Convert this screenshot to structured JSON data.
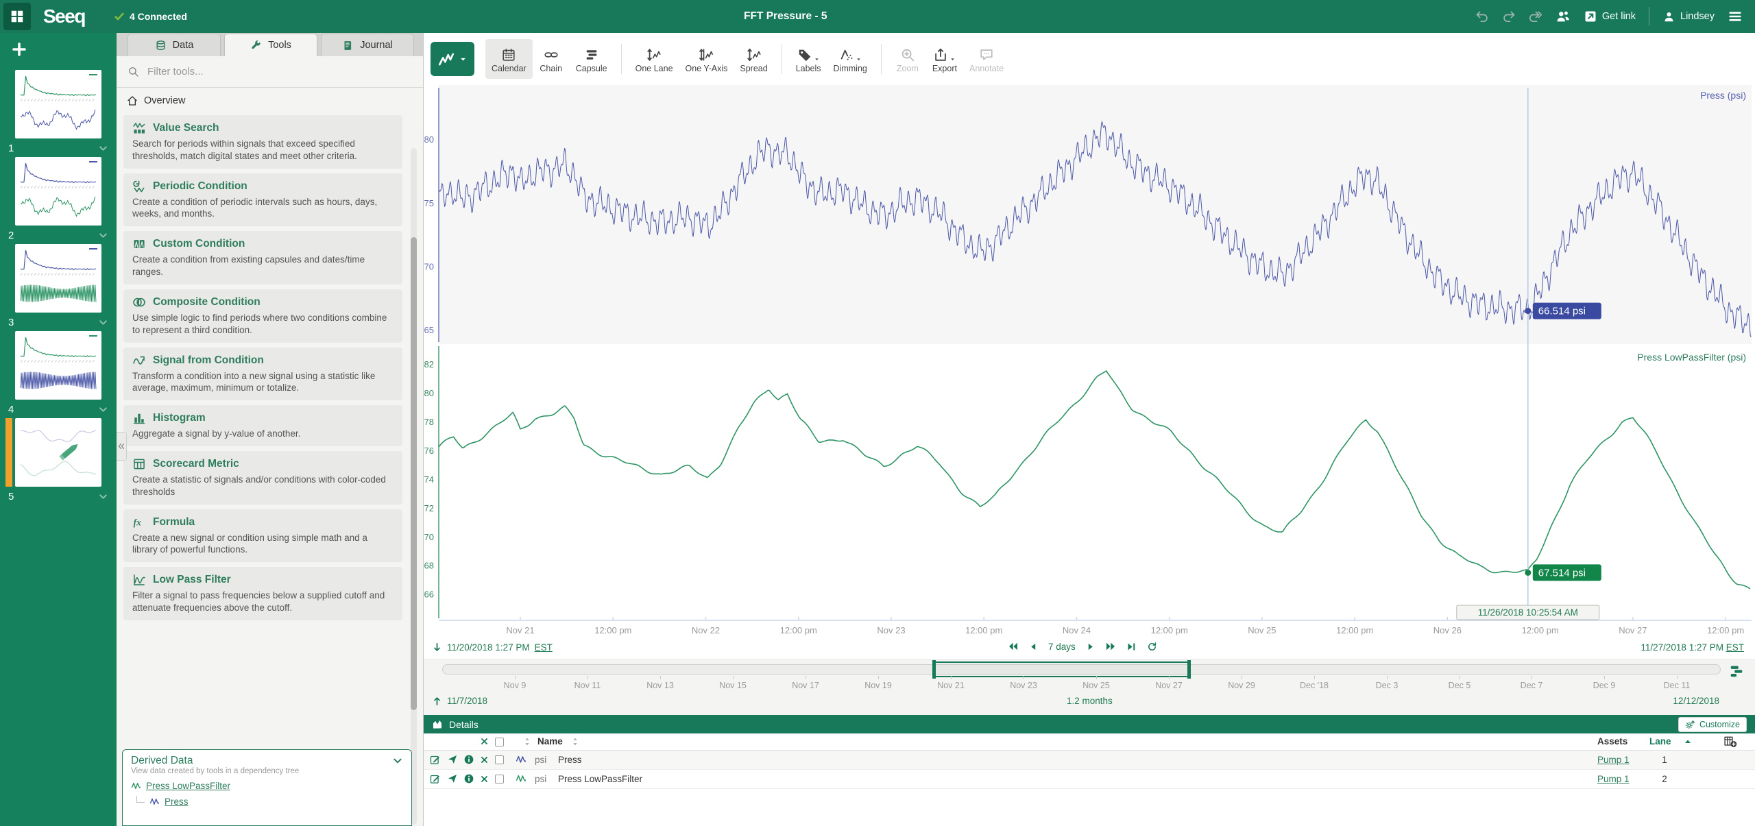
{
  "app": {
    "logo": "Seeq",
    "connected": "4 Connected",
    "title": "FFT Pressure - 5",
    "get_link": "Get link",
    "user": "Lindsey"
  },
  "worksheets": {
    "items": [
      {
        "n": "1",
        "top": "spike-green",
        "bottom": "wave-blue",
        "active": false
      },
      {
        "n": "2",
        "top": "spike-blue",
        "bottom": "wave-green",
        "active": false
      },
      {
        "n": "3",
        "top": "spike-blue",
        "bottom": "dense-green",
        "active": false
      },
      {
        "n": "4",
        "top": "spike-green",
        "bottom": "dense-blue",
        "active": false
      },
      {
        "n": "5",
        "top": "faded",
        "bottom": "faded",
        "active": true
      }
    ]
  },
  "tools_panel": {
    "tabs": [
      {
        "label": "Data",
        "icon": "database-icon",
        "active": false
      },
      {
        "label": "Tools",
        "icon": "wrench-icon",
        "active": true
      },
      {
        "label": "Journal",
        "icon": "journal-icon",
        "active": false
      }
    ],
    "filter_placeholder": "Filter tools...",
    "overview_label": "Overview",
    "tools": [
      {
        "name": "Value Search",
        "icon": "value-search-icon",
        "description": "Search for periods within signals that exceed specified thresholds, match digital states and meet other criteria."
      },
      {
        "name": "Periodic Condition",
        "icon": "periodic-condition-icon",
        "description": "Create a condition of periodic intervals such as hours, days, weeks, and months."
      },
      {
        "name": "Custom Condition",
        "icon": "custom-condition-icon",
        "description": "Create a condition from existing capsules and dates/time ranges."
      },
      {
        "name": "Composite Condition",
        "icon": "composite-condition-icon",
        "description": "Use simple logic to find periods where two conditions combine to represent a third condition."
      },
      {
        "name": "Signal from Condition",
        "icon": "signal-from-condition-icon",
        "description": "Transform a condition into a new signal using a statistic like average, maximum, minimum or totalize."
      },
      {
        "name": "Histogram",
        "icon": "histogram-icon",
        "description": "Aggregate a signal by y-value of another."
      },
      {
        "name": "Scorecard Metric",
        "icon": "scorecard-metric-icon",
        "description": "Create a statistic of signals and/or conditions with color-coded thresholds"
      },
      {
        "name": "Formula",
        "icon": "formula-icon",
        "description": "Create a new signal or condition using simple math and a library of powerful functions."
      },
      {
        "name": "Low Pass Filter",
        "icon": "low-pass-filter-icon",
        "description": "Filter a signal to pass frequencies below a supplied cutoff and attenuate frequencies above the cutoff."
      }
    ],
    "derived_data": {
      "title": "Derived Data",
      "subtitle": "View data created by tools in a dependency tree",
      "items": [
        {
          "label": "Press LowPassFilter",
          "color": "#2C9464",
          "indent": 0
        },
        {
          "label": "Press",
          "color": "#4C58A7",
          "indent": 1
        }
      ]
    }
  },
  "toolbar": {
    "items": [
      {
        "type": "view",
        "icon": "trend-icon",
        "caret": true
      },
      {
        "type": "button",
        "label": "Calendar",
        "icon": "calendar-icon",
        "active": true
      },
      {
        "type": "button",
        "label": "Chain",
        "icon": "chain-icon"
      },
      {
        "type": "button",
        "label": "Capsule",
        "icon": "capsule-icon"
      },
      {
        "type": "divider"
      },
      {
        "type": "button",
        "label": "One Lane",
        "icon": "one-lane-icon"
      },
      {
        "type": "button",
        "label": "One Y-Axis",
        "icon": "one-y-axis-icon"
      },
      {
        "type": "button",
        "label": "Spread",
        "icon": "spread-icon"
      },
      {
        "type": "divider"
      },
      {
        "type": "button",
        "label": "Labels",
        "icon": "labels-icon",
        "caret": true
      },
      {
        "type": "button",
        "label": "Dimming",
        "icon": "dimming-icon",
        "caret": true
      },
      {
        "type": "divider"
      },
      {
        "type": "button",
        "label": "Zoom",
        "icon": "zoom-tool-icon",
        "disabled": true
      },
      {
        "type": "button",
        "label": "Export",
        "icon": "export-icon",
        "caret": true
      },
      {
        "type": "button",
        "label": "Annotate",
        "icon": "annotate-icon",
        "disabled": true
      }
    ]
  },
  "range": {
    "start": "11/20/2018 1:27 PM",
    "start_tz": "EST",
    "end": "11/27/2018 1:27 PM",
    "end_tz": "EST",
    "duration": "7 days"
  },
  "investigate": {
    "start": "11/7/2018",
    "end": "12/12/2018",
    "duration": "1.2 months",
    "span_days": 35.2,
    "selection_days": [
      13.56,
      20.56
    ],
    "ticks": [
      [
        2,
        "Nov 9"
      ],
      [
        4,
        "Nov 11"
      ],
      [
        6,
        "Nov 13"
      ],
      [
        8,
        "Nov 15"
      ],
      [
        10,
        "Nov 17"
      ],
      [
        12,
        "Nov 19"
      ],
      [
        14,
        "Nov 21"
      ],
      [
        16,
        "Nov 23"
      ],
      [
        18,
        "Nov 25"
      ],
      [
        20,
        "Nov 27"
      ],
      [
        22,
        "Nov 29"
      ],
      [
        24,
        "Dec '18"
      ],
      [
        26,
        "Dec 3"
      ],
      [
        28,
        "Dec 5"
      ],
      [
        30,
        "Dec 7"
      ],
      [
        32,
        "Dec 9"
      ],
      [
        34,
        "Dec 11"
      ]
    ]
  },
  "details": {
    "title": "Details",
    "customize_label": "Customize",
    "columns": {
      "name": "Name",
      "assets": "Assets",
      "lane": "Lane"
    },
    "rows": [
      {
        "unit": "psi",
        "name": "Press",
        "asset": "Pump 1",
        "lane": "1",
        "color": "#4C58A7"
      },
      {
        "unit": "psi",
        "name": "Press LowPassFilter",
        "asset": "Pump 1",
        "lane": "2",
        "color": "#2C9464"
      }
    ]
  },
  "chart_data": {
    "type": "line",
    "x_range": [
      "11/20/2018 1:27 PM EST",
      "11/27/2018 1:27 PM EST"
    ],
    "x_span_days": 7.08,
    "x_ticks": [
      [
        0.44,
        "Nov 21"
      ],
      [
        0.94,
        "12:00 pm"
      ],
      [
        1.44,
        "Nov 22"
      ],
      [
        1.94,
        "12:00 pm"
      ],
      [
        2.44,
        "Nov 23"
      ],
      [
        2.94,
        "12:00 pm"
      ],
      [
        3.44,
        "Nov 24"
      ],
      [
        3.94,
        "12:00 pm"
      ],
      [
        4.44,
        "Nov 25"
      ],
      [
        4.94,
        "12:00 pm"
      ],
      [
        5.44,
        "Nov 26"
      ],
      [
        5.94,
        "12:00 pm"
      ],
      [
        6.44,
        "Nov 27"
      ],
      [
        6.94,
        "12:00 pm"
      ]
    ],
    "lanes": [
      {
        "name": "Press",
        "axis_label": "Press (psi)",
        "unit": "psi",
        "color": "#4C58A7",
        "tick_color": "#6670B2",
        "badge": "#3A4AA0",
        "ylim": [
          63.9,
          84.3
        ],
        "yticks": [
          65,
          70,
          75,
          80
        ],
        "style": "noisy",
        "offset": -0.9,
        "noise": [
          [
            21,
            0.75,
            0
          ],
          [
            47,
            0.42,
            1.7
          ],
          [
            9.3,
            0.3,
            0.4
          ]
        ]
      },
      {
        "name": "Press LowPassFilter",
        "axis_label": "Press LowPassFilter (psi)",
        "unit": "psi",
        "color": "#2C9464",
        "tick_color": "#37865F",
        "badge": "#128549",
        "ylim": [
          64.2,
          83.4
        ],
        "yticks": [
          66,
          68,
          70,
          72,
          74,
          76,
          78,
          80,
          82
        ],
        "style": "smooth",
        "wiggle": [
          [
            3.1,
            0.13,
            0.5
          ],
          [
            7.7,
            0.09,
            0
          ]
        ]
      }
    ],
    "base_points": [
      [
        0,
        76.2
      ],
      [
        0.08,
        76.9
      ],
      [
        0.13,
        76.15
      ],
      [
        0.3,
        77.6
      ],
      [
        0.4,
        78.5
      ],
      [
        0.44,
        77.4
      ],
      [
        0.52,
        78.3
      ],
      [
        0.62,
        78.6
      ],
      [
        0.68,
        78.9
      ],
      [
        0.73,
        78.2
      ],
      [
        0.78,
        76.4
      ],
      [
        0.9,
        75.7
      ],
      [
        1.05,
        74.9
      ],
      [
        1.2,
        74.4
      ],
      [
        1.35,
        74.8
      ],
      [
        1.45,
        74.1
      ],
      [
        1.52,
        75.2
      ],
      [
        1.62,
        77.6
      ],
      [
        1.7,
        79.2
      ],
      [
        1.78,
        80.4
      ],
      [
        1.83,
        79.6
      ],
      [
        1.88,
        80.0
      ],
      [
        1.95,
        78.1
      ],
      [
        2.05,
        76.6
      ],
      [
        2.18,
        76.9
      ],
      [
        2.3,
        75.6
      ],
      [
        2.4,
        74.9
      ],
      [
        2.5,
        75.8
      ],
      [
        2.58,
        76.3
      ],
      [
        2.7,
        75.1
      ],
      [
        2.82,
        73.2
      ],
      [
        2.92,
        72.0
      ],
      [
        3.0,
        72.8
      ],
      [
        3.1,
        74.5
      ],
      [
        3.22,
        76.2
      ],
      [
        3.35,
        78.2
      ],
      [
        3.45,
        79.6
      ],
      [
        3.55,
        81.0
      ],
      [
        3.6,
        81.5
      ],
      [
        3.66,
        80.3
      ],
      [
        3.74,
        79.0
      ],
      [
        3.85,
        78.0
      ],
      [
        3.95,
        77.2
      ],
      [
        4.05,
        76.0
      ],
      [
        4.15,
        74.6
      ],
      [
        4.25,
        73.2
      ],
      [
        4.35,
        71.9
      ],
      [
        4.45,
        70.8
      ],
      [
        4.55,
        70.2
      ],
      [
        4.65,
        71.8
      ],
      [
        4.78,
        74.2
      ],
      [
        4.9,
        76.6
      ],
      [
        5.0,
        78.2
      ],
      [
        5.06,
        77.5
      ],
      [
        5.12,
        76.0
      ],
      [
        5.2,
        73.8
      ],
      [
        5.3,
        71.5
      ],
      [
        5.4,
        69.8
      ],
      [
        5.5,
        68.6
      ],
      [
        5.62,
        67.9
      ],
      [
        5.74,
        67.6
      ],
      [
        5.874,
        67.514
      ],
      [
        5.92,
        68.4
      ],
      [
        6.0,
        70.8
      ],
      [
        6.1,
        73.6
      ],
      [
        6.2,
        75.4
      ],
      [
        6.3,
        76.9
      ],
      [
        6.38,
        78.0
      ],
      [
        6.44,
        78.3
      ],
      [
        6.5,
        77.2
      ],
      [
        6.58,
        75.6
      ],
      [
        6.68,
        73.2
      ],
      [
        6.78,
        70.8
      ],
      [
        6.88,
        68.8
      ],
      [
        6.95,
        67.6
      ],
      [
        7.0,
        66.9
      ],
      [
        7.08,
        66.3
      ]
    ],
    "cursor": {
      "t_days": 5.874,
      "time_label": "11/26/2018 10:25:54 AM",
      "values": [
        {
          "lane": 0,
          "value": 66.514,
          "label": "66.514 psi"
        },
        {
          "lane": 1,
          "value": 67.514,
          "label": "67.514 psi"
        }
      ]
    }
  }
}
